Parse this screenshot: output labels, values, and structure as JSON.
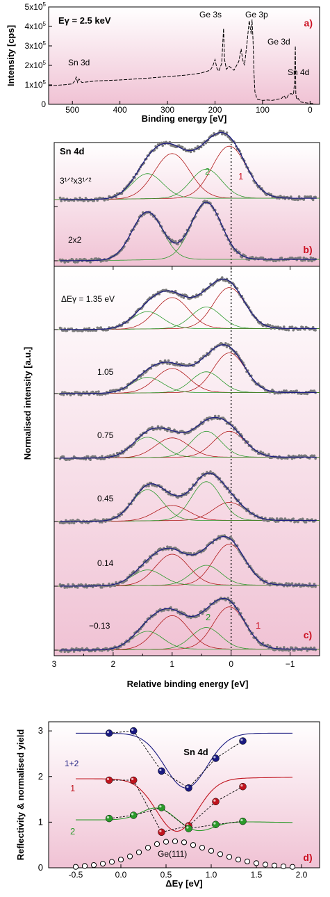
{
  "chart_data": [
    {
      "id": "a",
      "type": "line",
      "panel_label": "a)",
      "annotation": "Eγ = 2.5 keV",
      "xlabel": "Binding energy [eV]",
      "ylabel": "Intensity [cps]",
      "xlim": [
        550,
        -20
      ],
      "ylim": [
        0,
        500000
      ],
      "x_ticks": [
        "500",
        "400",
        "300",
        "200",
        "100",
        "0"
      ],
      "x_tick_values": [
        500,
        400,
        300,
        200,
        100,
        0
      ],
      "y_ticks": [
        "0",
        "1x10⁵",
        "2x10⁵",
        "3x10⁵",
        "4x10⁵",
        "5x10⁵"
      ],
      "y_tick_values": [
        0,
        100000,
        200000,
        300000,
        400000,
        500000
      ],
      "peak_labels": [
        "Sn 3d",
        "Ge 3s",
        "Ge 3p",
        "Ge 3d",
        "Sn 4d"
      ],
      "series": [
        {
          "x": [
            550,
            520,
            500,
            495,
            492,
            489,
            486,
            480,
            450,
            400,
            350,
            300,
            260,
            230,
            210,
            205,
            200,
            196,
            192,
            186,
            182,
            180,
            176,
            170,
            160,
            150,
            145,
            142,
            138,
            132,
            128,
            124,
            122,
            120,
            118,
            116,
            112,
            110,
            100,
            90,
            80,
            70,
            60,
            55,
            50,
            45,
            40,
            35,
            33,
            31,
            30,
            29,
            28,
            25,
            20,
            10,
            0,
            -10
          ],
          "values": [
            95000,
            100000,
            105000,
            120000,
            140000,
            112000,
            130000,
            112000,
            120000,
            125000,
            133000,
            142000,
            150000,
            160000,
            175000,
            195000,
            230000,
            185000,
            170000,
            210000,
            390000,
            230000,
            180000,
            195000,
            175000,
            220000,
            285000,
            230000,
            200000,
            330000,
            430000,
            360000,
            435000,
            330000,
            160000,
            65000,
            30000,
            25000,
            20000,
            22000,
            20000,
            25000,
            30000,
            45000,
            28000,
            50000,
            55000,
            50000,
            100000,
            300000,
            55000,
            35000,
            25000,
            30000,
            12000,
            8000,
            5000,
            3000
          ]
        }
      ]
    },
    {
      "id": "b",
      "type": "line",
      "panel_label": "b)",
      "title": "Sn 4d",
      "xlim": [
        3,
        -1.5
      ],
      "spectra": [
        {
          "label": "3¹ᐟ²x3¹ᐟ²",
          "components": [
            {
              "name": "1",
              "center": 0.03,
              "amp": 1.0,
              "sigma": 0.29
            },
            {
              "name": "2",
              "center": 0.42,
              "amp": 0.56,
              "sigma": 0.26
            },
            {
              "center": 1.0,
              "amp": 0.86,
              "sigma": 0.3
            },
            {
              "center": 1.42,
              "amp": 0.48,
              "sigma": 0.26
            }
          ]
        },
        {
          "label": "2x2",
          "components": [
            {
              "center": 0.42,
              "amp": 1.0,
              "sigma": 0.26
            },
            {
              "center": 1.42,
              "amp": 0.84,
              "sigma": 0.26
            }
          ]
        }
      ]
    },
    {
      "id": "c",
      "type": "line",
      "panel_label": "c)",
      "xlabel": "Relative binding energy [eV]",
      "ylabel": "Normalised intensity [a.u.]",
      "xlim": [
        3,
        -1.5
      ],
      "x_ticks": [
        "3",
        "2",
        "1",
        "0",
        "−1"
      ],
      "x_tick_values": [
        3,
        2,
        1,
        0,
        -1
      ],
      "component_labels": [
        "1",
        "2"
      ],
      "spectra": [
        {
          "label": "ΔEγ = 1.35 eV",
          "peak1": 0.95,
          "peak2": 0.5,
          "red_b": 0.72,
          "green_b": 0.4
        },
        {
          "label": "1.05",
          "peak1": 0.92,
          "peak2": 0.48,
          "red_b": 0.56,
          "green_b": 0.36
        },
        {
          "label": "0.75",
          "peak1": 0.6,
          "peak2": 0.6,
          "red_b": 0.45,
          "green_b": 0.47
        },
        {
          "label": "0.45",
          "peak1": 0.42,
          "peak2": 0.9,
          "red_b": 0.35,
          "green_b": 0.72
        },
        {
          "label": "0.14",
          "peak1": 0.95,
          "peak2": 0.46,
          "red_b": 0.72,
          "green_b": 0.36
        },
        {
          "label": "−0.13",
          "peak1": 0.98,
          "peak2": 0.5,
          "red_b": 0.78,
          "green_b": 0.42
        }
      ]
    },
    {
      "id": "d",
      "type": "line",
      "panel_label": "d)",
      "title": "Sn 4d",
      "xlabel": "ΔEγ [eV]",
      "ylabel": "Reflectivity & normalised yield",
      "xlim": [
        -0.8,
        2.2
      ],
      "ylim": [
        0,
        3.2
      ],
      "x_ticks": [
        "-0.5",
        "0.0",
        "0.5",
        "1.0",
        "1.5",
        "2.0"
      ],
      "x_tick_values": [
        -0.5,
        0,
        0.5,
        1,
        1.5,
        2
      ],
      "y_ticks": [
        "0",
        "1",
        "2",
        "3"
      ],
      "y_tick_values": [
        0,
        1,
        2,
        3
      ],
      "series": [
        {
          "name": "1+2",
          "color": "#1a1a80",
          "x": [
            -0.13,
            0.14,
            0.45,
            0.75,
            1.05,
            1.35
          ],
          "values": [
            2.95,
            3.0,
            2.12,
            1.75,
            2.4,
            2.78
          ]
        },
        {
          "name": "1",
          "color": "#c0141e",
          "x": [
            -0.13,
            0.14,
            0.45,
            0.75,
            1.05,
            1.35
          ],
          "values": [
            1.92,
            1.92,
            0.78,
            0.92,
            1.45,
            1.78
          ]
        },
        {
          "name": "2",
          "color": "#2a9a2a",
          "x": [
            -0.13,
            0.14,
            0.45,
            0.75,
            1.05,
            1.35
          ],
          "values": [
            1.08,
            1.15,
            1.32,
            0.86,
            0.95,
            1.02
          ]
        },
        {
          "name": "Ge(111)",
          "color": "#000000",
          "x": [
            -0.5,
            -0.4,
            -0.3,
            -0.2,
            -0.1,
            0.0,
            0.1,
            0.2,
            0.3,
            0.4,
            0.5,
            0.6,
            0.7,
            0.8,
            0.9,
            1.0,
            1.1,
            1.2,
            1.3,
            1.4,
            1.5,
            1.6,
            1.7,
            1.8,
            1.9
          ],
          "values": [
            0.02,
            0.04,
            0.06,
            0.09,
            0.13,
            0.18,
            0.25,
            0.34,
            0.44,
            0.52,
            0.57,
            0.58,
            0.56,
            0.5,
            0.44,
            0.37,
            0.3,
            0.24,
            0.18,
            0.14,
            0.1,
            0.07,
            0.05,
            0.03,
            0.02
          ]
        }
      ]
    }
  ]
}
